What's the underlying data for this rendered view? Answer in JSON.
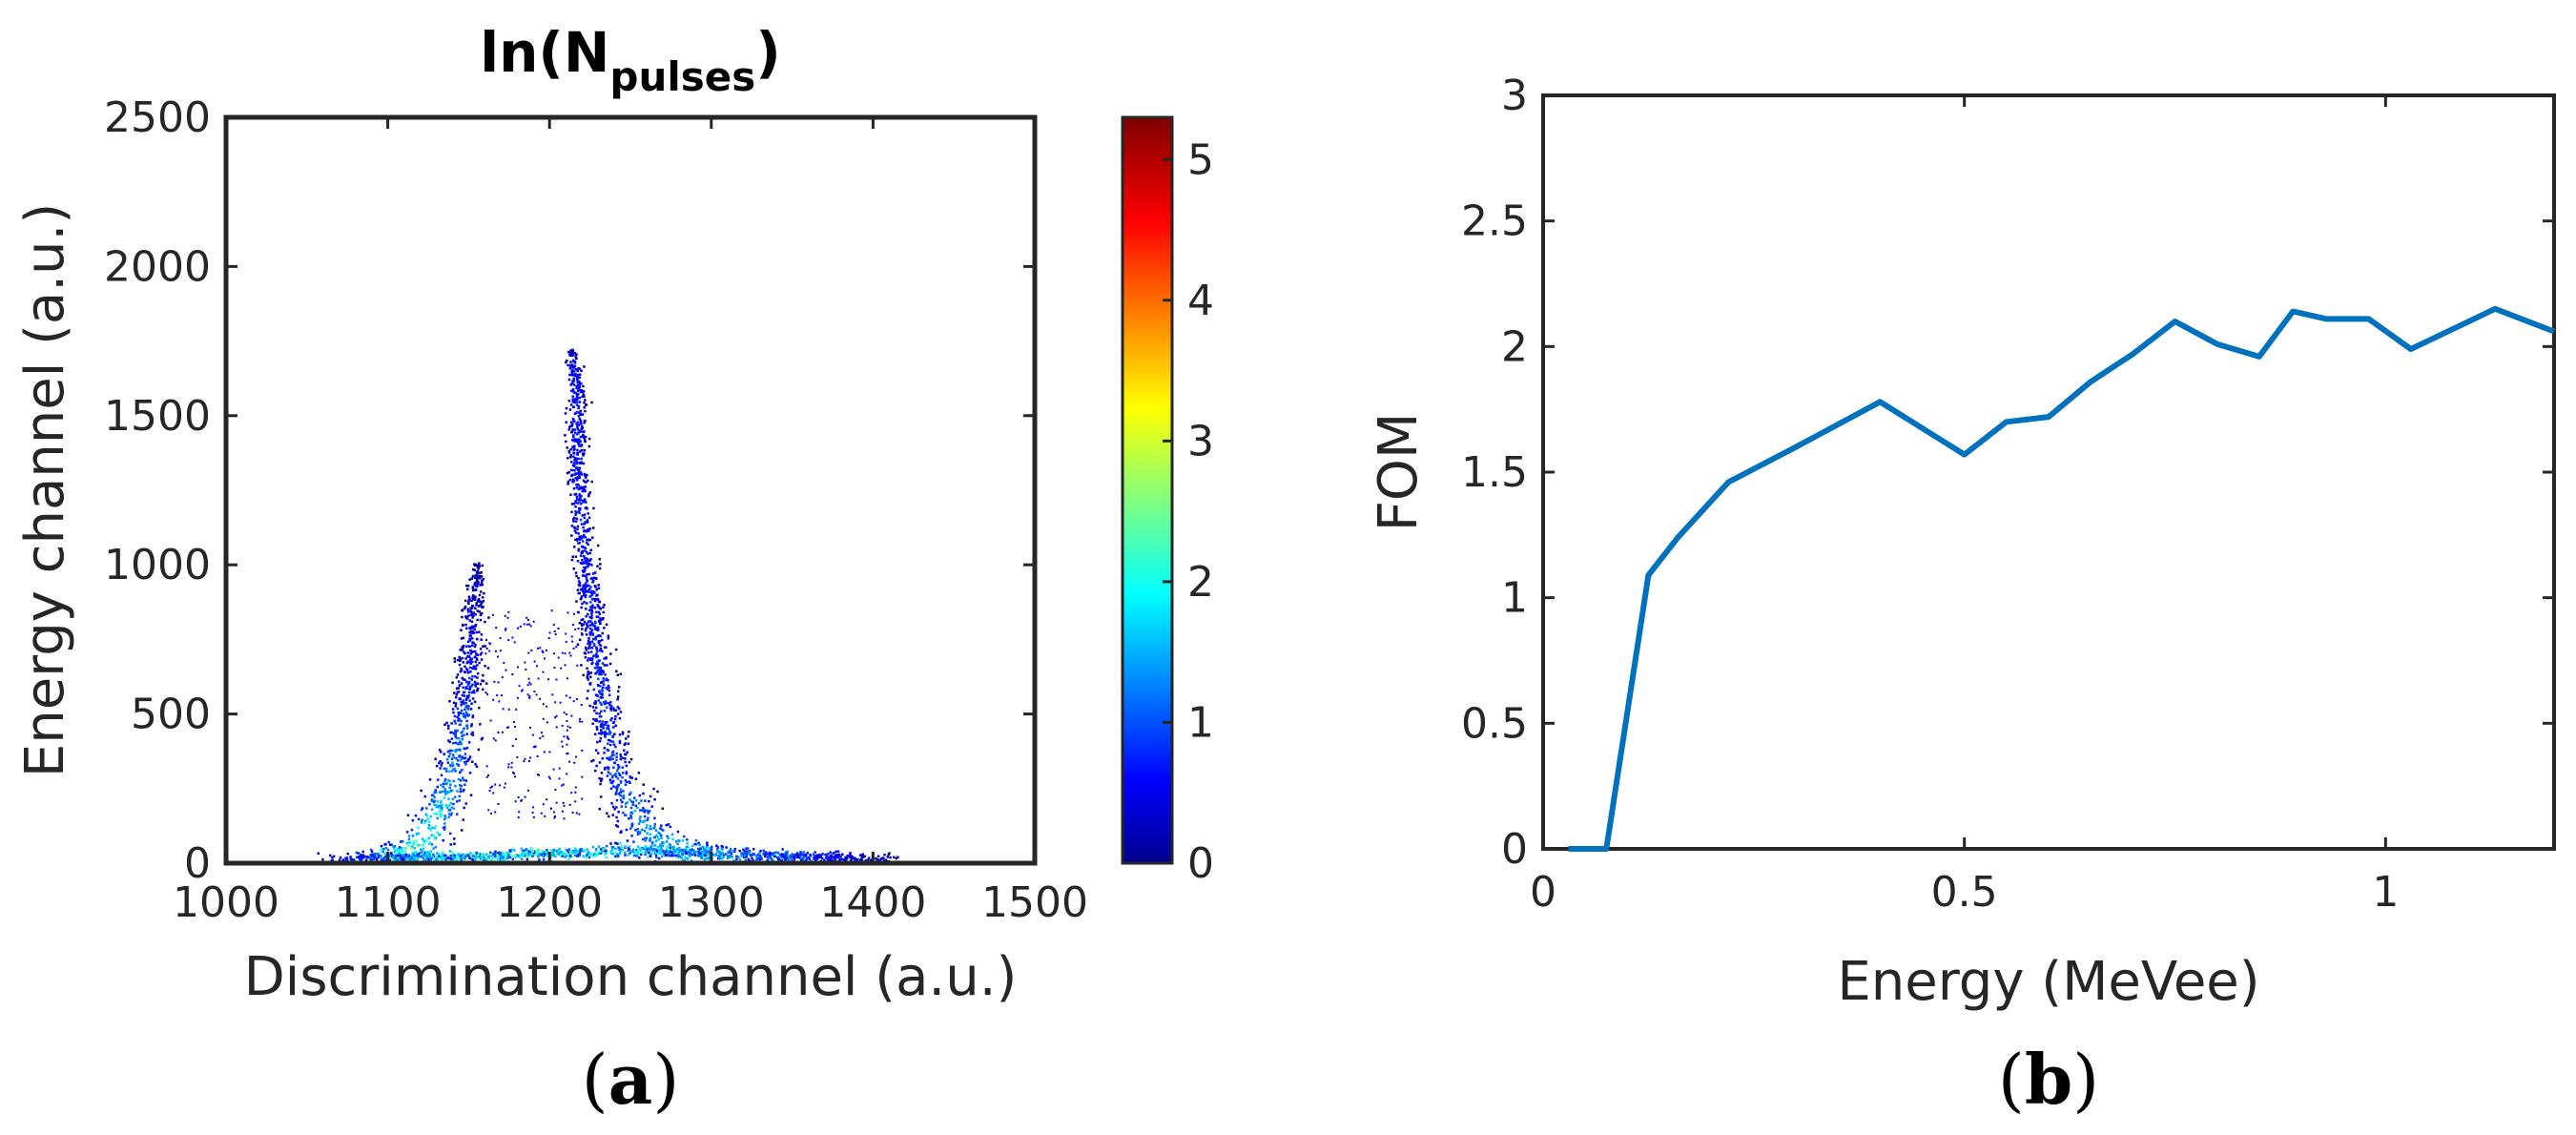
{
  "chart_data": [
    {
      "type": "heatmap",
      "title": {
        "main": "ln(N",
        "sub": "pulses",
        "close": ")"
      },
      "xlabel": "Discrimination channel (a.u.)",
      "ylabel": "Energy channel (a.u.)",
      "xlim": [
        1000,
        1500
      ],
      "ylim": [
        0,
        2500
      ],
      "xticks": [
        "1000",
        "1100",
        "1200",
        "1300",
        "1400",
        "1500"
      ],
      "yticks": [
        "0",
        "500",
        "1000",
        "1500",
        "2000",
        "2500"
      ],
      "colorbar": {
        "min": 0,
        "max": 5.3,
        "ticks": [
          "0",
          "1",
          "2",
          "3",
          "4",
          "5"
        ],
        "colormap": "jet"
      },
      "regions": [
        {
          "name": "left-band",
          "points": [
            [
              1090,
              0
            ],
            [
              1120,
              60
            ],
            [
              1138,
              250
            ],
            [
              1150,
              600
            ],
            [
              1153,
              900
            ],
            [
              1155,
              1000
            ]
          ],
          "width": [
            60,
            36,
            26,
            18,
            12,
            6
          ],
          "intensity": [
            3.2,
            2.8,
            1.8,
            1.0,
            0.5,
            0.2
          ]
        },
        {
          "name": "right-band",
          "points": [
            [
              1300,
              0
            ],
            [
              1260,
              100
            ],
            [
              1240,
              300
            ],
            [
              1228,
              700
            ],
            [
              1218,
              1200
            ],
            [
              1215,
              1650
            ],
            [
              1213,
              1720
            ]
          ],
          "width": [
            90,
            40,
            24,
            18,
            14,
            12,
            4
          ],
          "intensity": [
            2.4,
            1.8,
            1.2,
            1.0,
            0.9,
            0.9,
            0.3
          ]
        },
        {
          "name": "base-ridge",
          "points": [
            [
              1070,
              10
            ],
            [
              1150,
              20
            ],
            [
              1250,
              40
            ],
            [
              1350,
              20
            ],
            [
              1410,
              5
            ]
          ],
          "width": [
            30,
            30,
            40,
            30,
            10
          ],
          "intensity": [
            0.8,
            3.0,
            2.5,
            1.5,
            0.3
          ]
        }
      ]
    },
    {
      "type": "line",
      "title": "",
      "xlabel": "Energy (MeVee)",
      "ylabel": "FOM",
      "xlim": [
        0,
        1.2
      ],
      "ylim": [
        0,
        3
      ],
      "xticks": [
        "0",
        "0.5",
        "1"
      ],
      "yticks": [
        "0",
        "0.5",
        "1",
        "1.5",
        "2",
        "2.5",
        "3"
      ],
      "line_color": "#0072BD",
      "x": [
        0.03,
        0.075,
        0.125,
        0.16,
        0.22,
        0.3,
        0.4,
        0.5,
        0.55,
        0.6,
        0.65,
        0.7,
        0.75,
        0.8,
        0.85,
        0.89,
        0.93,
        0.98,
        1.03,
        1.08,
        1.13,
        1.2
      ],
      "y": [
        0,
        0,
        1.09,
        1.24,
        1.46,
        1.6,
        1.78,
        1.57,
        1.7,
        1.72,
        1.86,
        1.97,
        2.1,
        2.01,
        1.96,
        2.14,
        2.11,
        2.11,
        1.99,
        2.07,
        2.15,
        2.06
      ]
    }
  ],
  "captions": {
    "a": "a",
    "b": "b"
  }
}
